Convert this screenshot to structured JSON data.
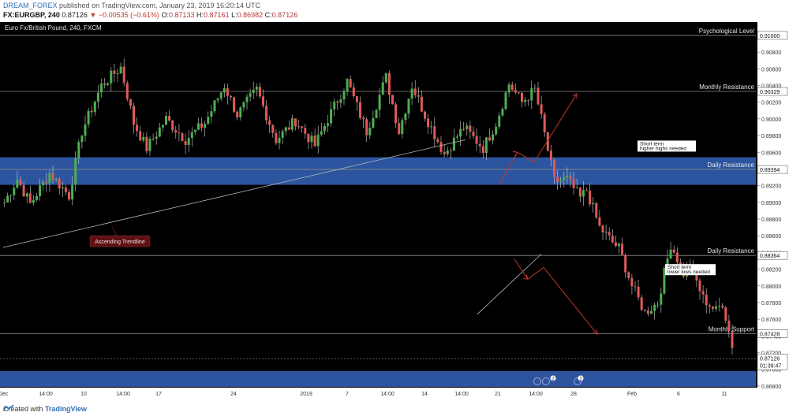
{
  "header": {
    "user": "DREAM_FOREX",
    "published_text": "published on TradingView.com, January 23, 2019 16:20:14 UTC",
    "symbol_line": "FX:EURGBP, 240",
    "price": "0.87126",
    "change_arrow": "▼",
    "change": "−0.00535 (−0.61%)",
    "o_label": "O:",
    "o_value": "0.87133",
    "h_label": "H:",
    "h_value": "0.87161",
    "l_label": "L:",
    "l_value": "0.86982",
    "c_label": "C:",
    "c_value": "0.87126"
  },
  "footer": {
    "created_with": "Created with",
    "brand": "TradingView"
  },
  "colors": {
    "background": "#000000",
    "up_candle": "#4caf50",
    "down_candle": "#e05a5a",
    "zone": "#2f5aa8",
    "level_line": "#8a8a8a",
    "arrow": "#c0392b",
    "trendline": "#bbbbbb"
  },
  "chart_data": {
    "type": "candlestick",
    "title": "Euro Fx/British Pound, 240, FXCM",
    "x_ticks": [
      "Dec",
      "14:00",
      "10",
      "14:00",
      "17",
      "24",
      "2019",
      "7",
      "14:00",
      "14",
      "14:00",
      "21",
      "14:00",
      "28",
      "Feb",
      "6",
      "11"
    ],
    "y_ticks": [
      0.91,
      0.908,
      0.906,
      0.904,
      0.902,
      0.9,
      0.898,
      0.896,
      0.894,
      0.892,
      0.89,
      0.888,
      0.886,
      0.884,
      0.882,
      0.88,
      0.878,
      0.876,
      0.874,
      0.872,
      0.87,
      0.868
    ],
    "y_tick_labels": [
      "0.91000",
      "0.90800",
      "0.90600",
      "0.90400",
      "0.90200",
      "0.90000",
      "0.89800",
      "0.89600",
      "0.89400",
      "0.89200",
      "0.89000",
      "0.88800",
      "0.88600",
      "0.88400",
      "0.88200",
      "0.88000",
      "0.87800",
      "0.87600",
      "0.87400",
      "0.87200",
      "0.87000",
      "0.86800"
    ],
    "ylim": [
      0.8678,
      0.9116
    ],
    "price_path": [
      [
        0.89,
        4
      ],
      [
        0.8928,
        8
      ],
      [
        0.8898,
        12
      ],
      [
        0.8935,
        18
      ],
      [
        0.8908,
        24
      ],
      [
        0.8985,
        28
      ],
      [
        0.904,
        34
      ],
      [
        0.9062,
        40
      ],
      [
        0.8995,
        44
      ],
      [
        0.8965,
        48
      ],
      [
        0.9,
        54
      ],
      [
        0.8975,
        60
      ],
      [
        0.8995,
        66
      ],
      [
        0.904,
        72
      ],
      [
        0.9005,
        76
      ],
      [
        0.9035,
        82
      ],
      [
        0.8975,
        88
      ],
      [
        0.8998,
        94
      ],
      [
        0.8968,
        100
      ],
      [
        0.9,
        104
      ],
      [
        0.9045,
        110
      ],
      [
        0.8985,
        116
      ],
      [
        0.905,
        122
      ],
      [
        0.8985,
        126
      ],
      [
        0.904,
        130
      ],
      [
        0.9005,
        134
      ],
      [
        0.8958,
        140
      ],
      [
        0.899,
        146
      ],
      [
        0.8965,
        152
      ],
      [
        0.8995,
        156
      ],
      [
        0.9042,
        160
      ],
      [
        0.902,
        164
      ],
      [
        0.9035,
        168
      ],
      [
        0.9,
        170
      ],
      [
        0.8925,
        174
      ],
      [
        0.8928,
        178
      ],
      [
        0.8905,
        182
      ],
      [
        0.8915,
        184
      ],
      [
        0.887,
        188
      ],
      [
        0.8852,
        192
      ],
      [
        0.8845,
        194
      ],
      [
        0.88,
        198
      ],
      [
        0.8768,
        202
      ],
      [
        0.878,
        206
      ],
      [
        0.885,
        210
      ],
      [
        0.8815,
        214
      ],
      [
        0.8825,
        216
      ],
      [
        0.8785,
        220
      ],
      [
        0.877,
        224
      ],
      [
        0.878,
        226
      ],
      [
        0.8712,
        230
      ]
    ],
    "horizontal_levels": [
      {
        "label": "Psychological Level",
        "price_label": "0.91000",
        "y": 0.91
      },
      {
        "label": "Monthly Resistance",
        "price_label": "0.90329",
        "y": 0.90329
      },
      {
        "label": "Daily Resistance",
        "price_label": "0.89394",
        "y": 0.89394
      },
      {
        "label": "Daily Resistance",
        "price_label": "0.88364",
        "y": 0.88364
      },
      {
        "label": "Monthly Support",
        "price_label": "0.87428",
        "y": 0.87428
      }
    ],
    "zones": [
      {
        "from": 0.8921,
        "to": 0.8954
      },
      {
        "from": 0.8679,
        "to": 0.8698
      }
    ],
    "price_tags": [
      {
        "text": "0.87126",
        "sub": "01:39:47",
        "y": 0.87126
      }
    ],
    "annotations": [
      {
        "text": "Ascending Trendline",
        "style": "red-box"
      },
      {
        "lines": [
          "Short term",
          "higher highs needed"
        ],
        "style": "white-box"
      },
      {
        "lines": [
          "Short term",
          "lower lows needed"
        ],
        "style": "white-box"
      }
    ],
    "event_badges": [
      "2",
      "2"
    ]
  }
}
